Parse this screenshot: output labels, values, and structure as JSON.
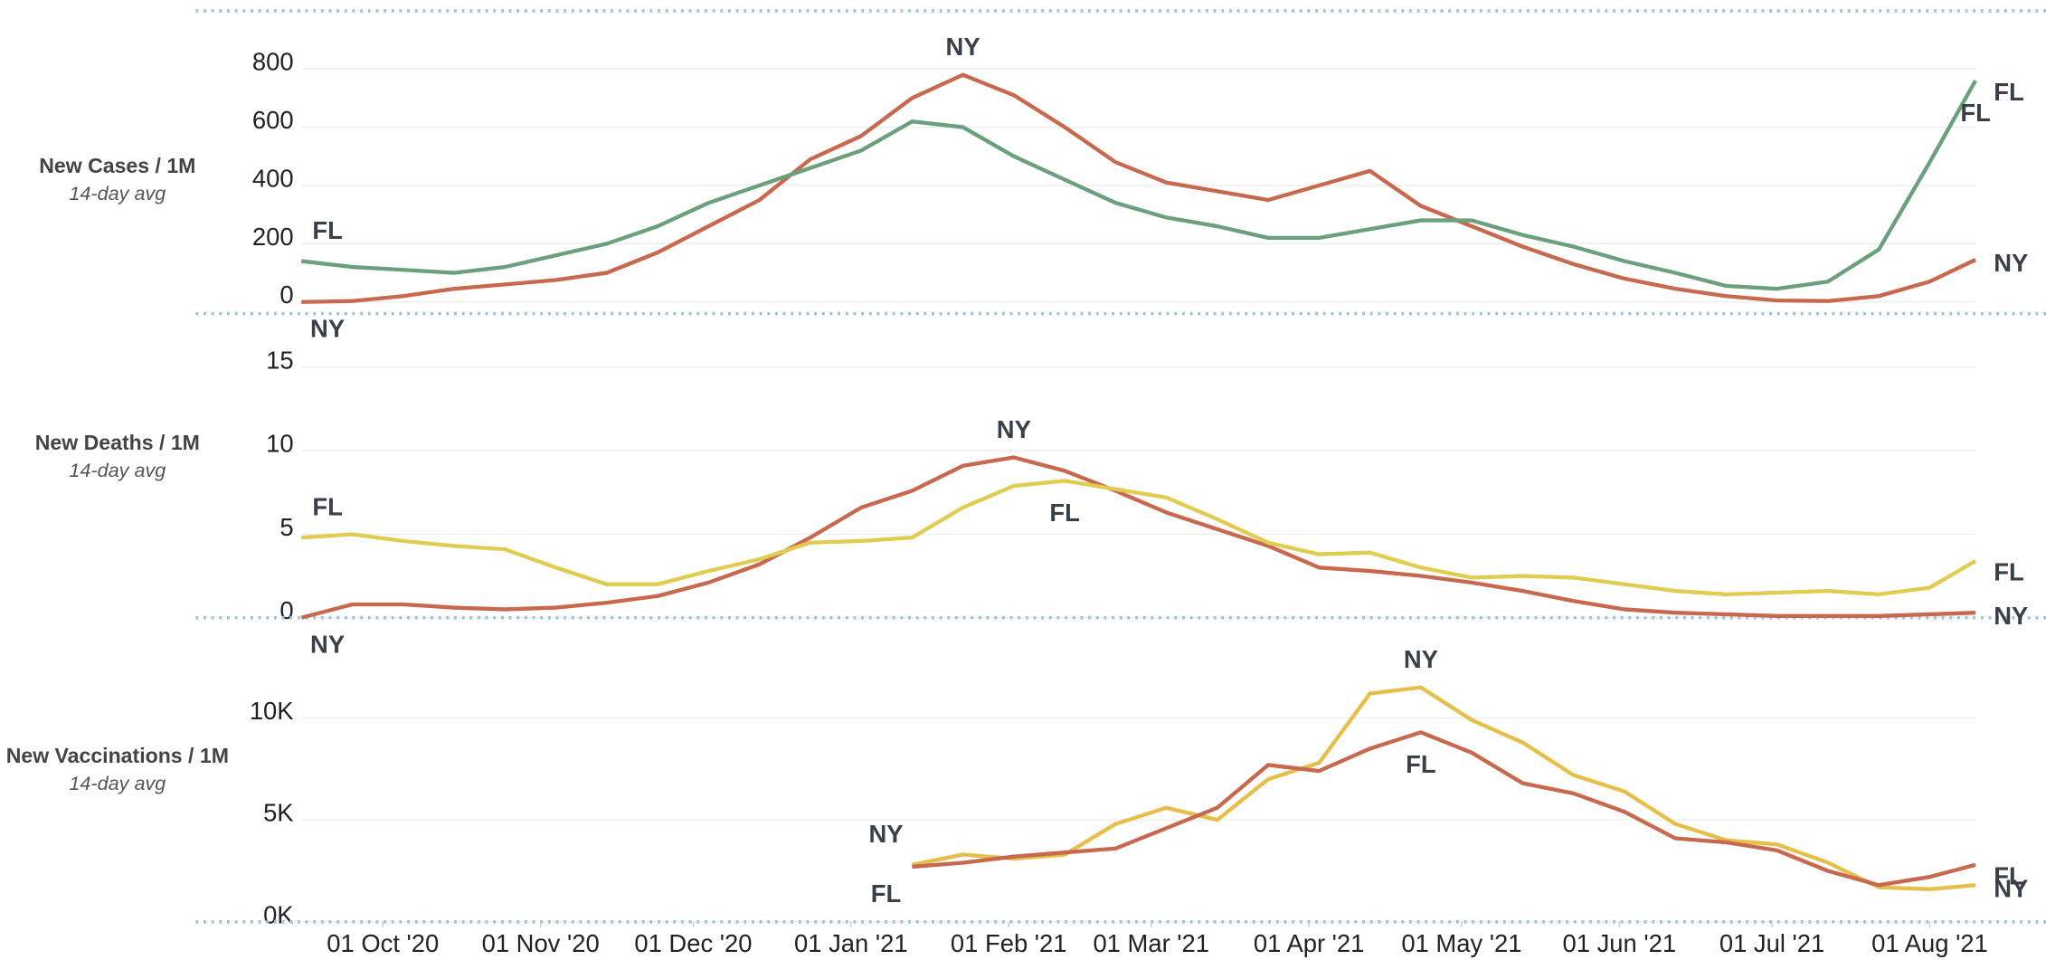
{
  "chart_data": [
    {
      "type": "line",
      "ylabel": "New Cases / 1M",
      "subtitle": "14-day avg",
      "grid": true,
      "x": [
        "2020-09-15",
        "2020-09-25",
        "2020-10-05",
        "2020-10-15",
        "2020-10-25",
        "2020-11-04",
        "2020-11-14",
        "2020-11-24",
        "2020-12-04",
        "2020-12-14",
        "2020-12-24",
        "2021-01-03",
        "2021-01-13",
        "2021-01-23",
        "2021-02-02",
        "2021-02-12",
        "2021-02-22",
        "2021-03-04",
        "2021-03-14",
        "2021-03-24",
        "2021-04-03",
        "2021-04-13",
        "2021-04-23",
        "2021-05-03",
        "2021-05-13",
        "2021-05-23",
        "2021-06-02",
        "2021-06-12",
        "2021-06-22",
        "2021-07-02",
        "2021-07-12",
        "2021-07-22",
        "2021-08-01",
        "2021-08-10"
      ],
      "xlim": [
        "2020-09-15",
        "2021-08-10"
      ],
      "ylim": [
        -40,
        1000
      ],
      "yticks": [
        0,
        200,
        400,
        600,
        800
      ],
      "series": [
        {
          "name": "NY",
          "color": "#c8684e",
          "values": [
            0,
            3,
            20,
            45,
            60,
            75,
            100,
            170,
            260,
            350,
            490,
            570,
            700,
            780,
            710,
            600,
            480,
            410,
            380,
            350,
            400,
            450,
            330,
            260,
            190,
            130,
            80,
            45,
            20,
            5,
            3,
            20,
            70,
            145
          ]
        },
        {
          "name": "FL",
          "color": "#6aa07c",
          "values": [
            140,
            120,
            110,
            100,
            120,
            160,
            200,
            260,
            340,
            400,
            460,
            520,
            620,
            600,
            500,
            420,
            340,
            290,
            260,
            220,
            220,
            250,
            280,
            280,
            230,
            190,
            140,
            100,
            55,
            45,
            70,
            180,
            480,
            760
          ]
        }
      ]
    },
    {
      "type": "line",
      "ylabel": "New Deaths / 1M",
      "subtitle": "14-day avg",
      "grid": true,
      "x": [
        "2020-09-15",
        "2020-09-25",
        "2020-10-05",
        "2020-10-15",
        "2020-10-25",
        "2020-11-04",
        "2020-11-14",
        "2020-11-24",
        "2020-12-04",
        "2020-12-14",
        "2020-12-24",
        "2021-01-03",
        "2021-01-13",
        "2021-01-23",
        "2021-02-02",
        "2021-02-12",
        "2021-02-22",
        "2021-03-04",
        "2021-03-14",
        "2021-03-24",
        "2021-04-03",
        "2021-04-13",
        "2021-04-23",
        "2021-05-03",
        "2021-05-13",
        "2021-05-23",
        "2021-06-02",
        "2021-06-12",
        "2021-06-22",
        "2021-07-02",
        "2021-07-12",
        "2021-07-22",
        "2021-08-01",
        "2021-08-10"
      ],
      "xlim": [
        "2020-09-15",
        "2021-08-10"
      ],
      "ylim": [
        0,
        16.5
      ],
      "yticks": [
        0,
        5,
        10,
        15
      ],
      "series": [
        {
          "name": "NY",
          "color": "#c8684e",
          "values": [
            0,
            0.8,
            0.8,
            0.6,
            0.5,
            0.6,
            0.9,
            1.3,
            2.1,
            3.2,
            4.8,
            6.6,
            7.6,
            9.1,
            9.6,
            8.8,
            7.6,
            6.3,
            5.3,
            4.3,
            3.0,
            2.8,
            2.5,
            2.1,
            1.6,
            1.0,
            0.5,
            0.3,
            0.2,
            0.1,
            0.1,
            0.1,
            0.2,
            0.3
          ]
        },
        {
          "name": "FL",
          "color": "#e0cc50",
          "values": [
            4.8,
            5.0,
            4.6,
            4.3,
            4.1,
            3.0,
            2.0,
            2.0,
            2.8,
            3.5,
            4.5,
            4.6,
            4.8,
            6.6,
            7.9,
            8.2,
            7.7,
            7.2,
            5.9,
            4.5,
            3.8,
            3.9,
            3.0,
            2.4,
            2.5,
            2.4,
            2.0,
            1.6,
            1.4,
            1.5,
            1.6,
            1.4,
            1.8,
            3.4
          ]
        }
      ]
    },
    {
      "type": "line",
      "ylabel": "New Vaccinations / 1M",
      "subtitle": "14-day avg",
      "grid": true,
      "x": [
        "2020-09-15",
        "2020-09-25",
        "2020-10-05",
        "2020-10-15",
        "2020-10-25",
        "2020-11-04",
        "2020-11-14",
        "2020-11-24",
        "2020-12-04",
        "2020-12-14",
        "2020-12-24",
        "2021-01-03",
        "2021-01-13",
        "2021-01-23",
        "2021-02-02",
        "2021-02-12",
        "2021-02-22",
        "2021-03-04",
        "2021-03-14",
        "2021-03-24",
        "2021-04-03",
        "2021-04-13",
        "2021-04-23",
        "2021-05-03",
        "2021-05-13",
        "2021-05-23",
        "2021-06-02",
        "2021-06-12",
        "2021-06-22",
        "2021-07-02",
        "2021-07-12",
        "2021-07-22",
        "2021-08-01",
        "2021-08-10"
      ],
      "xlim": [
        "2020-09-15",
        "2021-08-10"
      ],
      "xticks": [
        {
          "value": "2020-10-01",
          "label": "01 Oct '20"
        },
        {
          "value": "2020-11-01",
          "label": "01 Nov '20"
        },
        {
          "value": "2020-12-01",
          "label": "01 Dec '20"
        },
        {
          "value": "2021-01-01",
          "label": "01 Jan '21"
        },
        {
          "value": "2021-02-01",
          "label": "01 Feb '21"
        },
        {
          "value": "2021-03-01",
          "label": "01 Mar '21"
        },
        {
          "value": "2021-04-01",
          "label": "01 Apr '21"
        },
        {
          "value": "2021-05-01",
          "label": "01 May '21"
        },
        {
          "value": "2021-06-01",
          "label": "01 Jun '21"
        },
        {
          "value": "2021-07-01",
          "label": "01 Jul '21"
        },
        {
          "value": "2021-08-01",
          "label": "01 Aug '21"
        }
      ],
      "ylim": [
        0,
        13000
      ],
      "yticks": [
        {
          "value": 0,
          "label": "0K"
        },
        {
          "value": 5000,
          "label": "5K"
        },
        {
          "value": 10000,
          "label": "10K"
        }
      ],
      "series": [
        {
          "name": "NY",
          "color": "#e6be4a",
          "values": [
            null,
            null,
            null,
            null,
            null,
            null,
            null,
            null,
            null,
            null,
            null,
            null,
            2800,
            3300,
            3100,
            3300,
            4800,
            5600,
            5000,
            7000,
            7800,
            11200,
            11500,
            9900,
            8800,
            7200,
            6400,
            4800,
            4000,
            3800,
            2900,
            1700,
            1600,
            1800
          ]
        },
        {
          "name": "FL",
          "color": "#c8684e",
          "values": [
            null,
            null,
            null,
            null,
            null,
            null,
            null,
            null,
            null,
            null,
            null,
            null,
            2700,
            2900,
            3200,
            3400,
            3600,
            4600,
            5600,
            7700,
            7400,
            8500,
            9300,
            8300,
            6800,
            6300,
            5400,
            4100,
            3900,
            3500,
            2500,
            1800,
            2200,
            2800
          ]
        }
      ]
    }
  ]
}
